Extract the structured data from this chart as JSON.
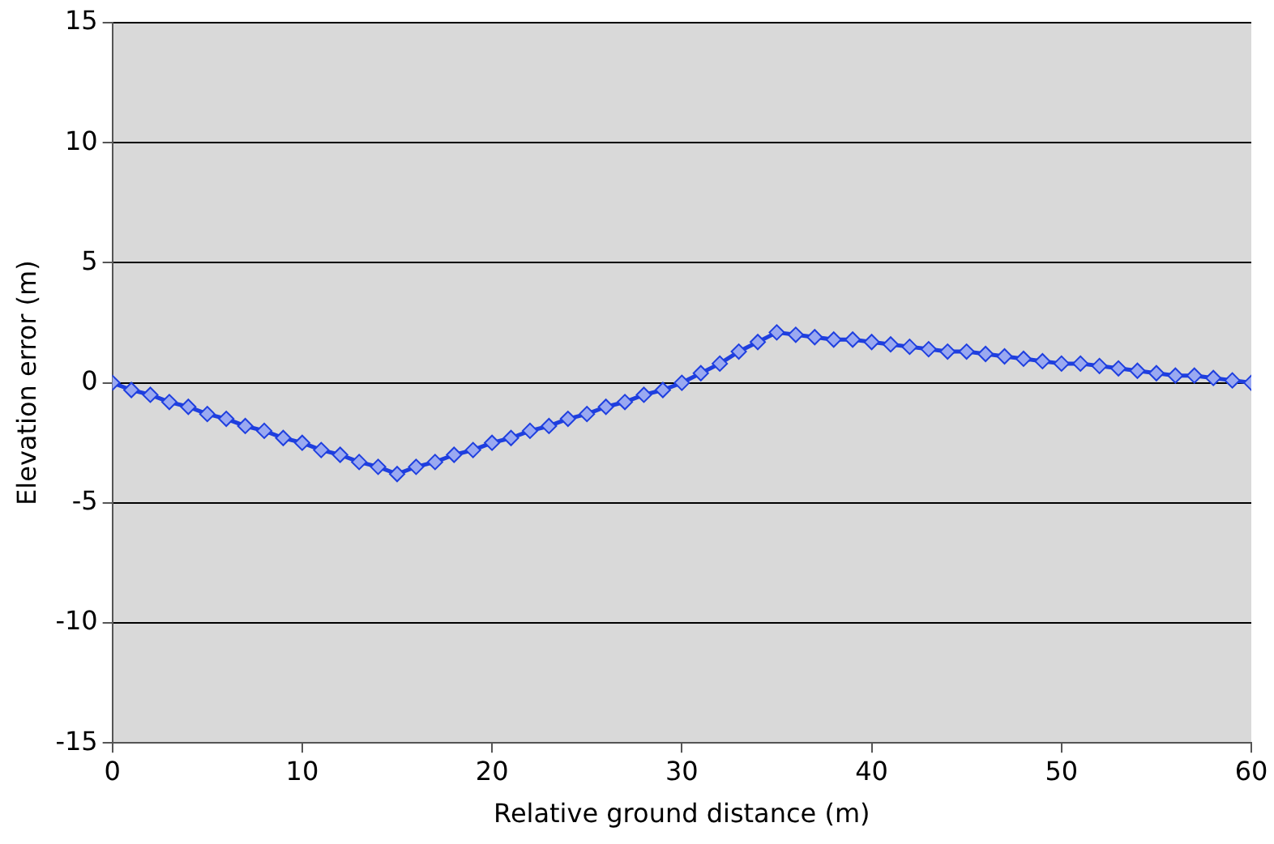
{
  "chart_data": {
    "type": "line",
    "xlabel": "Relative ground distance (m)",
    "ylabel": "Elevation error (m)",
    "x": [
      0,
      1,
      2,
      3,
      4,
      5,
      6,
      7,
      8,
      9,
      10,
      11,
      12,
      13,
      14,
      15,
      16,
      17,
      18,
      19,
      20,
      21,
      22,
      23,
      24,
      25,
      26,
      27,
      28,
      29,
      30,
      31,
      32,
      33,
      34,
      35,
      36,
      37,
      38,
      39,
      40,
      41,
      42,
      43,
      44,
      45,
      46,
      47,
      48,
      49,
      50,
      51,
      52,
      53,
      54,
      55,
      56,
      57,
      58,
      59,
      60
    ],
    "series": [
      {
        "color": "#1f3fdf",
        "values": [
          0,
          -0.3,
          -0.5,
          -0.8,
          -1.0,
          -1.3,
          -1.5,
          -1.8,
          -2.0,
          -2.3,
          -2.5,
          -2.8,
          -3.0,
          -3.3,
          -3.5,
          -3.8,
          -3.5,
          -3.3,
          -3.0,
          -2.8,
          -2.5,
          -2.3,
          -2.0,
          -1.8,
          -1.5,
          -1.3,
          -1.0,
          -0.8,
          -0.5,
          -0.3,
          0,
          0.4,
          0.8,
          1.3,
          1.7,
          2.1,
          2.0,
          1.9,
          1.8,
          1.8,
          1.7,
          1.6,
          1.5,
          1.4,
          1.3,
          1.3,
          1.2,
          1.1,
          1.0,
          0.9,
          0.8,
          0.8,
          0.7,
          0.6,
          0.5,
          0.4,
          0.3,
          0.3,
          0.2,
          0.1,
          0
        ]
      }
    ],
    "xlim": [
      0,
      60
    ],
    "xticks": [
      0,
      10,
      20,
      30,
      40,
      50,
      60
    ],
    "ylim": [
      -15,
      15
    ],
    "yticks": [
      -15,
      -10,
      -5,
      0,
      5,
      10,
      15
    ],
    "grid": "y",
    "legend": false,
    "marker": "diamond",
    "line_style": "solid"
  }
}
